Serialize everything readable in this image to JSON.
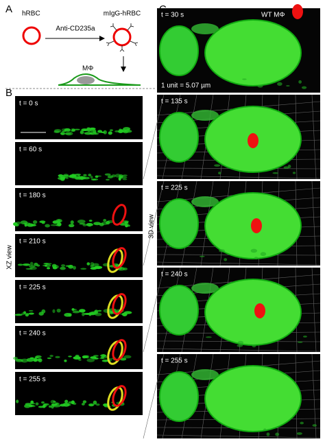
{
  "panel_a": {
    "label": "A",
    "rbc": "hRBC",
    "antibody": "Anti-CD235a",
    "opsonized": "mIgG-hRBC",
    "macrophage": "MΦ"
  },
  "panel_b": {
    "label": "B",
    "axis_label": "XZ view",
    "frames": [
      "t = 0 s",
      "t = 60 s",
      "t = 180 s",
      "t = 210 s",
      "t = 225 s",
      "t = 240 s",
      "t = 255 s"
    ]
  },
  "panel_c": {
    "label": "C",
    "axis_label": "3D view",
    "cell_label": "WT MΦ",
    "scale": "1 unit = 5.07 µm",
    "frames": [
      "t = 30 s",
      "t = 135 s",
      "t = 225 s",
      "t = 240 s",
      "t = 255 s"
    ]
  }
}
